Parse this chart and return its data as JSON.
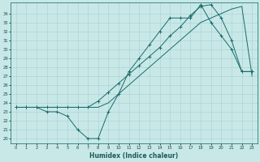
{
  "xlabel": "Humidex (Indice chaleur)",
  "bg_color": "#c8e8e8",
  "grid_color": "#a8cece",
  "line_color": "#1a6b6b",
  "xlim": [
    -0.5,
    23.5
  ],
  "ylim": [
    19.5,
    35.2
  ],
  "yticks": [
    20,
    21,
    22,
    23,
    24,
    25,
    26,
    27,
    28,
    29,
    30,
    31,
    32,
    33,
    34
  ],
  "xticks": [
    0,
    1,
    2,
    3,
    4,
    5,
    6,
    7,
    8,
    9,
    10,
    11,
    12,
    13,
    14,
    15,
    16,
    17,
    18,
    19,
    20,
    21,
    22,
    23
  ],
  "line1_x": [
    0,
    1,
    2,
    3,
    4,
    5,
    6,
    7,
    8,
    9,
    10,
    11,
    12,
    13,
    14,
    15,
    16,
    17,
    18,
    19,
    20,
    21,
    22,
    23
  ],
  "line1_y": [
    23.5,
    23.5,
    23.5,
    23.5,
    23.5,
    23.5,
    23.5,
    23.5,
    23.5,
    24.0,
    25.0,
    26.0,
    27.0,
    28.0,
    29.0,
    30.0,
    31.0,
    32.0,
    33.0,
    33.5,
    34.0,
    34.5,
    34.8,
    27.0
  ],
  "line2_x": [
    0,
    1,
    2,
    3,
    4,
    5,
    6,
    7,
    8,
    9,
    10,
    11,
    12,
    13,
    14,
    15,
    16,
    17,
    18,
    19,
    20,
    21,
    22,
    23
  ],
  "line2_y": [
    23.5,
    23.5,
    23.5,
    23.0,
    23.0,
    22.5,
    21.0,
    20.0,
    20.0,
    23.0,
    25.0,
    27.5,
    29.0,
    30.5,
    32.0,
    33.5,
    33.5,
    33.5,
    35.0,
    33.0,
    31.5,
    30.0,
    27.5,
    27.5
  ],
  "line3_x": [
    0,
    1,
    2,
    3,
    4,
    5,
    6,
    7,
    8,
    9,
    10,
    11,
    12,
    13,
    14,
    15,
    16,
    17,
    18,
    19,
    20,
    21,
    22,
    23
  ],
  "line3_y": [
    23.5,
    23.5,
    23.5,
    23.5,
    23.5,
    23.5,
    23.5,
    23.5,
    24.2,
    25.2,
    26.2,
    27.2,
    28.2,
    29.2,
    30.2,
    31.5,
    32.5,
    33.8,
    34.8,
    35.0,
    33.5,
    31.0,
    27.5,
    27.5
  ]
}
